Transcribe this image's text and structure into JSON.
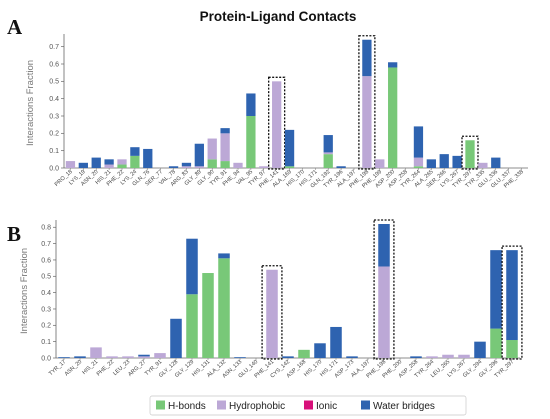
{
  "title": "Protein-Ligand Contacts",
  "colors": {
    "H-bonds": "#78c878",
    "Hydrophobic": "#bca8d6",
    "Ionic": "#d8107a",
    "Water bridges": "#2e63b0"
  },
  "legend": [
    "H-bonds",
    "Hydrophobic",
    "Ionic",
    "Water bridges"
  ],
  "chart_data": [
    {
      "type": "bar",
      "stacked": true,
      "panel": "A",
      "ylabel": "Interactions Fraction",
      "ylim": [
        0,
        0.75
      ],
      "yticks": [
        0.0,
        0.1,
        0.2,
        0.3,
        0.4,
        0.5,
        0.6,
        0.7
      ],
      "categories": [
        "PRO_18",
        "LYS_19",
        "ASN_20",
        "HIS_21",
        "PHE_22",
        "LYS_24",
        "GLN_76",
        "SER_77",
        "VAL_78",
        "ARG_83",
        "GLY_89",
        "GLY_90",
        "TYR_91",
        "PHE_94",
        "VAL_95",
        "TYR_97",
        "PHE_141",
        "ALA_169",
        "HIS_170",
        "HIS_171",
        "GLN_192",
        "TYR_196",
        "ALA_197",
        "PHE_198",
        "PHE_199",
        "ASP_200",
        "ASP_258",
        "TYR_264",
        "ALA_265",
        "SER_266",
        "LYS_267",
        "TYR_297",
        "TYR_335",
        "GLU_336",
        "GLU_337",
        "PHE_338"
      ],
      "series": [
        {
          "name": "H-bonds",
          "values": [
            0,
            0,
            0,
            0,
            0.02,
            0.07,
            0,
            0,
            0,
            0,
            0,
            0.05,
            0.04,
            0,
            0.3,
            0,
            0,
            0.01,
            0,
            0,
            0.08,
            0,
            0,
            0,
            0,
            0.58,
            0,
            0.01,
            0,
            0,
            0,
            0.16,
            0,
            0,
            0,
            0
          ]
        },
        {
          "name": "Hydrophobic",
          "values": [
            0.04,
            0,
            0,
            0.02,
            0.03,
            0,
            0,
            0,
            0,
            0.01,
            0.01,
            0.12,
            0.16,
            0.03,
            0,
            0.01,
            0.5,
            0,
            0,
            0,
            0.01,
            0,
            0,
            0.53,
            0.05,
            0,
            0,
            0.05,
            0,
            0,
            0,
            0,
            0.03,
            0,
            0,
            0
          ]
        },
        {
          "name": "Ionic",
          "values": [
            0,
            0,
            0,
            0,
            0,
            0,
            0,
            0,
            0,
            0,
            0,
            0,
            0,
            0,
            0,
            0,
            0,
            0,
            0,
            0,
            0,
            0,
            0,
            0,
            0,
            0,
            0,
            0,
            0,
            0,
            0,
            0,
            0,
            0,
            0,
            0
          ]
        },
        {
          "name": "Water bridges",
          "values": [
            0,
            0.03,
            0.06,
            0.03,
            0,
            0.05,
            0.11,
            0,
            0.01,
            0.02,
            0.13,
            0.0,
            0.03,
            0,
            0.13,
            0,
            0,
            0.21,
            0,
            0,
            0.1,
            0.01,
            0,
            0.21,
            0,
            0.03,
            0,
            0.18,
            0.05,
            0.08,
            0.07,
            0,
            0,
            0.06,
            0,
            0
          ]
        }
      ],
      "highlight": [
        "PHE_141",
        "PHE_198",
        "TYR_297"
      ]
    },
    {
      "type": "bar",
      "stacked": true,
      "panel": "B",
      "ylabel": "Interactions Fraction",
      "ylim": [
        0,
        0.82
      ],
      "yticks": [
        0.0,
        0.1,
        0.2,
        0.3,
        0.4,
        0.5,
        0.6,
        0.7,
        0.8
      ],
      "categories": [
        "TYR_17",
        "ASN_20",
        "HIS_21",
        "PHE_22",
        "LEU_23",
        "ARG_27",
        "TYR_91",
        "GLY_128",
        "GLY_129",
        "HIS_131",
        "ALA_132",
        "ASN_133",
        "GLU_140",
        "PHE_141",
        "CYS_142",
        "ASP_168",
        "HIS_170",
        "HIS_171",
        "ASP_173",
        "ALA_197",
        "PHE_198",
        "PHE_200",
        "ASP_258",
        "TYR_264",
        "LEU_265",
        "LYS_267",
        "GLY_294",
        "GLY_296",
        "TYR_297"
      ],
      "series": [
        {
          "name": "H-bonds",
          "values": [
            0,
            0,
            0,
            0,
            0,
            0,
            0,
            0,
            0.39,
            0.52,
            0.61,
            0,
            0,
            0,
            0,
            0.05,
            0,
            0,
            0,
            0,
            0,
            0,
            0,
            0,
            0,
            0,
            0,
            0.18,
            0.11
          ]
        },
        {
          "name": "Hydrophobic",
          "values": [
            0,
            0,
            0.065,
            0.01,
            0.01,
            0.01,
            0.03,
            0,
            0,
            0,
            0,
            0,
            0,
            0.54,
            0,
            0,
            0,
            0,
            0,
            0,
            0.56,
            0,
            0,
            0.01,
            0.02,
            0.02,
            0,
            0,
            0
          ]
        },
        {
          "name": "Ionic",
          "values": [
            0,
            0,
            0,
            0,
            0,
            0,
            0,
            0,
            0,
            0,
            0,
            0,
            0,
            0,
            0,
            0,
            0,
            0,
            0,
            0,
            0,
            0,
            0,
            0,
            0,
            0,
            0,
            0,
            0
          ]
        },
        {
          "name": "Water bridges",
          "values": [
            0.005,
            0.01,
            0,
            0,
            0,
            0.01,
            0,
            0.24,
            0.34,
            0,
            0.03,
            0.005,
            0,
            0,
            0.01,
            0,
            0.09,
            0.19,
            0.01,
            0,
            0.26,
            0,
            0.01,
            0,
            0,
            0,
            0.1,
            0.48,
            0.55
          ]
        }
      ],
      "highlight": [
        "PHE_141",
        "PHE_198",
        "TYR_297"
      ]
    }
  ]
}
